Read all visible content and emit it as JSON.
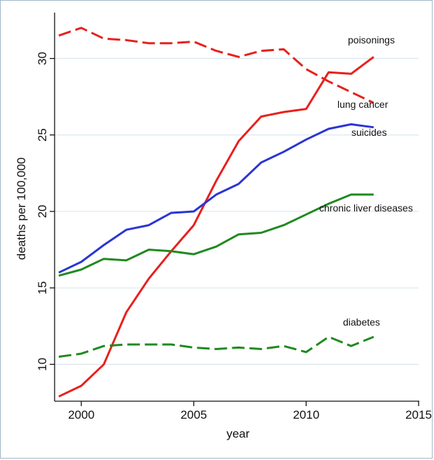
{
  "chart_data": {
    "type": "line",
    "title": "",
    "xlabel": "year",
    "ylabel": "deaths per 100,000",
    "xlim": [
      1999,
      2015
    ],
    "ylim": [
      7.5,
      33
    ],
    "x_ticks": [
      2000,
      2005,
      2010,
      2015
    ],
    "y_ticks": [
      10,
      15,
      20,
      25,
      30
    ],
    "grid": "horizontal",
    "x": [
      1999,
      2000,
      2001,
      2002,
      2003,
      2004,
      2005,
      2006,
      2007,
      2008,
      2009,
      2010,
      2011,
      2012,
      2013
    ],
    "series": [
      {
        "name": "poisonings",
        "color": "#e8201c",
        "dash": "solid",
        "values": [
          7.9,
          8.6,
          10.0,
          13.4,
          15.6,
          17.4,
          19.1,
          22.0,
          24.6,
          26.2,
          26.5,
          26.7,
          29.1,
          29.0,
          30.1
        ]
      },
      {
        "name": "lung cancer",
        "color": "#e8201c",
        "dash": "dashed",
        "values": [
          31.5,
          32.0,
          31.3,
          31.2,
          31.0,
          31.0,
          31.1,
          30.5,
          30.1,
          30.5,
          30.6,
          29.3,
          28.5,
          27.8,
          27.1
        ]
      },
      {
        "name": "suicides",
        "color": "#2a35d4",
        "dash": "solid",
        "values": [
          16.0,
          16.7,
          17.8,
          18.8,
          19.1,
          19.9,
          20.0,
          21.1,
          21.8,
          23.2,
          23.9,
          24.7,
          25.4,
          25.7,
          25.5
        ]
      },
      {
        "name": "chronic liver diseases",
        "color": "#1f8a1f",
        "dash": "solid",
        "values": [
          15.8,
          16.2,
          16.9,
          16.8,
          17.5,
          17.4,
          17.2,
          17.7,
          18.5,
          18.6,
          19.1,
          19.8,
          20.5,
          21.1,
          21.1
        ]
      },
      {
        "name": "diabetes",
        "color": "#1f8a1f",
        "dash": "dashed",
        "values": [
          10.5,
          10.7,
          11.2,
          11.3,
          11.3,
          11.3,
          11.1,
          11.0,
          11.1,
          11.0,
          11.2,
          10.8,
          11.8,
          11.2,
          11.8
        ]
      }
    ],
    "labels": {
      "poisonings": "poisonings",
      "lung_cancer": "lung cancer",
      "suicides": "suicides",
      "chronic_liver_diseases": "chronic liver diseases",
      "diabetes": "diabetes"
    }
  }
}
